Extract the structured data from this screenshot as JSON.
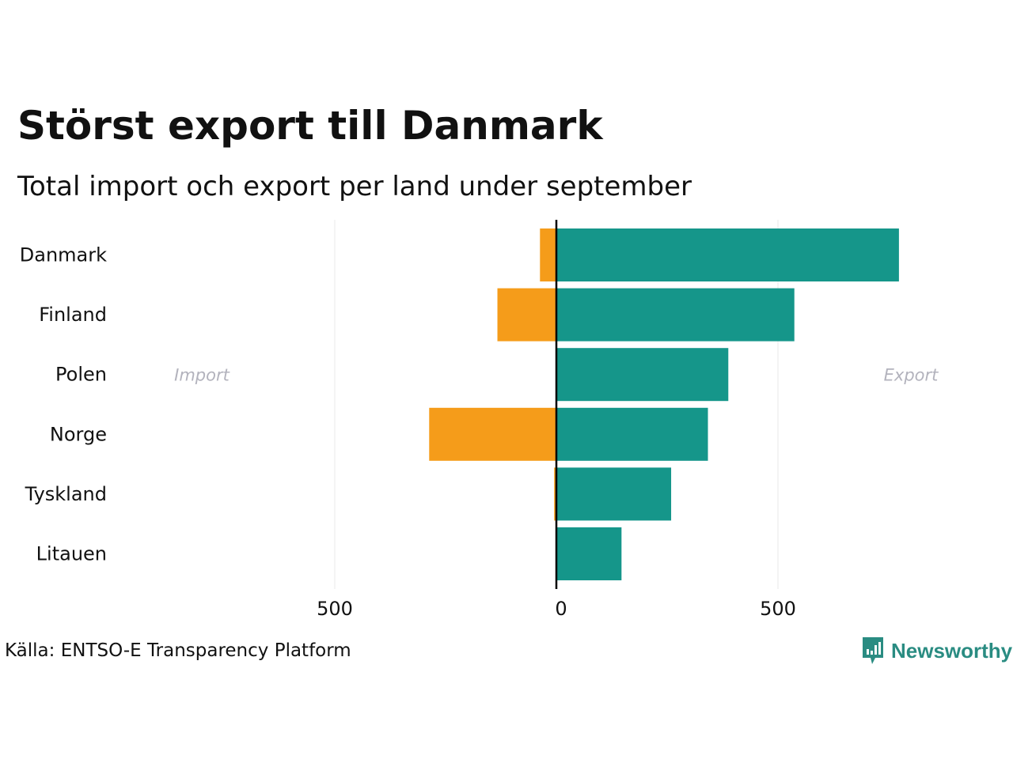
{
  "header": {
    "title": "Störst export till Danmark",
    "subtitle": "Total import och export per land under september"
  },
  "footer": {
    "source": "Källa: ENTSO-E Transparency Platform",
    "brand": "Newsworthy"
  },
  "colors": {
    "import": "#f59c1a",
    "export": "#15968a",
    "zero_line": "#000000",
    "grid": "#e8e8e8",
    "side_label": "#b3b3bd",
    "brand": "#2a8c82"
  },
  "icons": {
    "brand_logo": "newsworthy-bar-chart-icon"
  },
  "chart_data": {
    "type": "bar",
    "orientation": "horizontal",
    "categories": [
      "Danmark",
      "Finland",
      "Polen",
      "Norge",
      "Tyskland",
      "Litauen"
    ],
    "series": [
      {
        "name": "Import",
        "values": [
          37,
          133,
          0,
          287,
          5,
          0
        ],
        "color": "#f59c1a"
      },
      {
        "name": "Export",
        "values": [
          773,
          537,
          388,
          342,
          259,
          147
        ],
        "color": "#15968a"
      }
    ],
    "side_labels": {
      "left": "Import",
      "right": "Export"
    },
    "xlim": [
      -1000,
      1000
    ],
    "xticks": [
      -500,
      0,
      500
    ],
    "xtick_labels": [
      "500",
      "0",
      "500"
    ],
    "grid": true
  }
}
